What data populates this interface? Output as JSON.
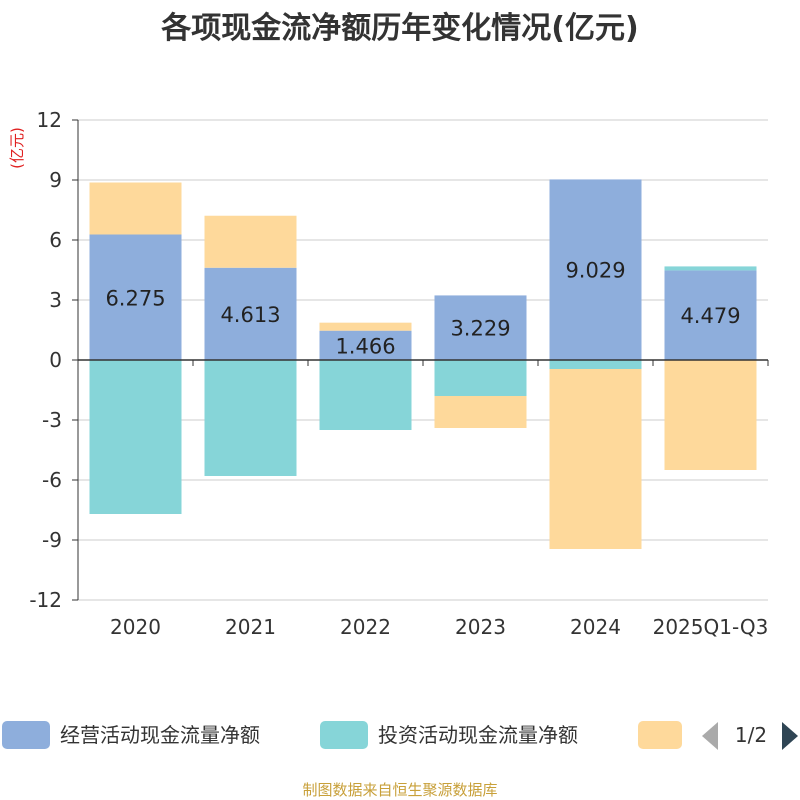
{
  "chart_data": {
    "type": "bar",
    "stacked": true,
    "title": "各项现金流净额历年变化情况(亿元)",
    "unit_label": "(亿元)",
    "ylim": [
      -12,
      12
    ],
    "yticks": [
      12,
      9,
      6,
      3,
      0,
      -3,
      -6,
      -9,
      -12
    ],
    "grid": true,
    "categories": [
      "2020",
      "2021",
      "2022",
      "2023",
      "2024",
      "2025Q1-Q3"
    ],
    "series": [
      {
        "name": "经营活动现金流量净额",
        "color": "#8eaedc",
        "values": [
          6.275,
          4.613,
          1.466,
          3.229,
          9.029,
          4.479
        ]
      },
      {
        "name": "投资活动现金流量净额",
        "color": "#86d5d8",
        "values": [
          -7.7,
          -5.8,
          -3.5,
          -1.8,
          -0.45,
          0.2
        ]
      },
      {
        "name": "",
        "color": "#fed99b",
        "values": [
          2.6,
          2.6,
          0.4,
          -1.6,
          -9.0,
          -5.5
        ]
      }
    ],
    "data_labels": [
      "6.275",
      "4.613",
      "1.466",
      "3.229",
      "9.029",
      "4.479"
    ]
  },
  "legend": {
    "page_indicator": "1/2",
    "items": [
      {
        "label": "经营活动现金流量净额",
        "color": "#8eaedc"
      },
      {
        "label": "投资活动现金流量净额",
        "color": "#86d5d8"
      },
      {
        "label": "",
        "color": "#fed99b"
      }
    ]
  },
  "footer": {
    "source": "制图数据来自恒生聚源数据库"
  }
}
